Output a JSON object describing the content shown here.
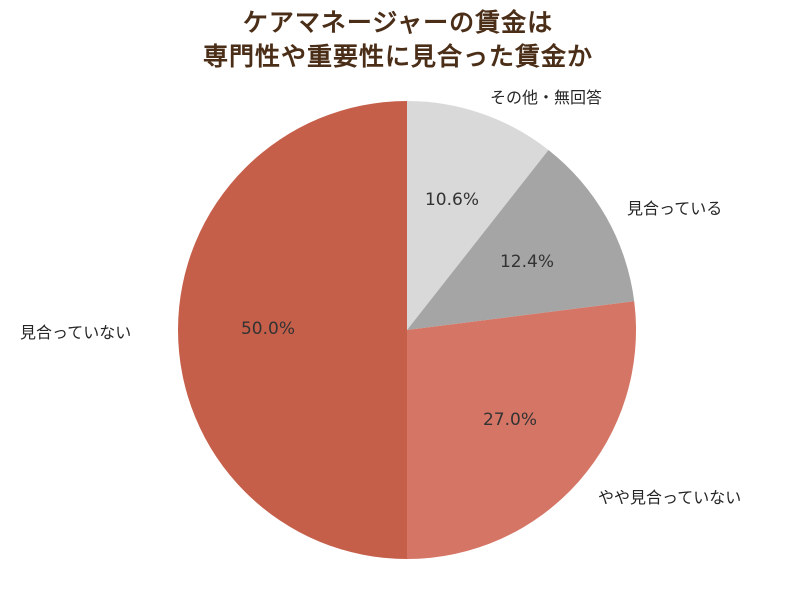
{
  "title": {
    "line1": "ケアマネージャーの賃金は",
    "line2": "専門性や重要性に見合った賃金か"
  },
  "colors": {
    "title": "#4b2e17",
    "other": "#d9d9d9",
    "matching": "#a5a5a5",
    "somewhat_not": "#d57565",
    "not_matching": "#c65f4a"
  },
  "chart_data": {
    "type": "pie",
    "title": "ケアマネージャーの賃金は専門性や重要性に見合った賃金か",
    "start_angle": "12 o'clock",
    "direction": "clockwise",
    "categories": [
      "その他・無回答",
      "見合っている",
      "やや見合っていない",
      "見合っていない"
    ],
    "values": [
      10.6,
      12.4,
      27.0,
      50.0
    ],
    "value_labels": [
      "10.6%",
      "12.4%",
      "27.0%",
      "50.0%"
    ],
    "colors": [
      "#d9d9d9",
      "#a5a5a5",
      "#d57565",
      "#c65f4a"
    ],
    "legend": "none (outside category labels)"
  },
  "labels": {
    "other": "その他・無回答",
    "matching": "見合っている",
    "somewhat_not": "やや見合っていない",
    "not_matching": "見合っていない"
  },
  "pct": {
    "other": "10.6%",
    "matching": "12.4%",
    "somewhat_not": "27.0%",
    "not_matching": "50.0%"
  }
}
